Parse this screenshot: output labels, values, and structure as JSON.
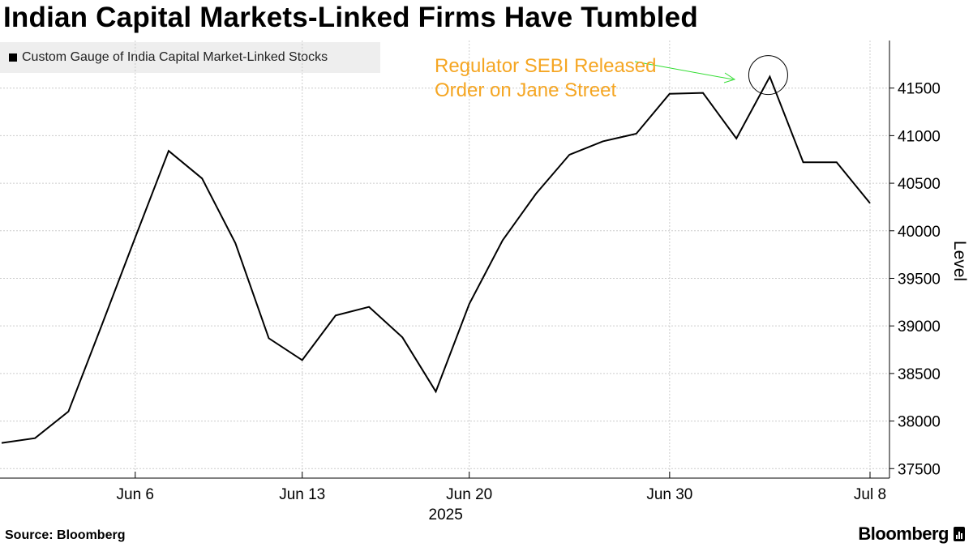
{
  "title": "Indian Capital Markets-Linked Firms Have Tumbled",
  "source": "Source: Bloomberg",
  "brand": "Bloomberg",
  "colors": {
    "line": "#000000",
    "annotation_text": "#f5a623",
    "annotation_arrow": "#33dd33",
    "grid": "#cccccc",
    "legend_bg": "#eeeeee"
  },
  "chart_data": {
    "type": "line",
    "title": "Indian Capital Markets-Linked Firms Have Tumbled",
    "ylabel": "Level",
    "xlabel": "2025",
    "ylim": [
      37400,
      42000
    ],
    "yticks": [
      37500,
      38000,
      38500,
      39000,
      39500,
      40000,
      40500,
      41000,
      41500
    ],
    "xticks": [
      {
        "label": "Jun 6",
        "index": 4
      },
      {
        "label": "Jun 13",
        "index": 9
      },
      {
        "label": "Jun 20",
        "index": 14
      },
      {
        "label": "Jun 30",
        "index": 20
      },
      {
        "label": "Jul 8",
        "index": 26
      }
    ],
    "x_year_label": "2025",
    "legend_position": "top-left",
    "grid": true,
    "series": [
      {
        "name": "Custom Gauge of India Capital Market-Linked Stocks",
        "values": [
          37770,
          37820,
          38100,
          39010,
          39930,
          40840,
          40550,
          39870,
          38870,
          38640,
          39110,
          39200,
          38880,
          38310,
          39230,
          39900,
          40390,
          40800,
          40940,
          41020,
          41440,
          41450,
          40970,
          41620,
          40720,
          40720,
          40290
        ]
      }
    ],
    "annotations": [
      {
        "text_lines": [
          "Regulator SEBI Released",
          "Order on Jane Street"
        ],
        "point_index": 23
      }
    ]
  }
}
